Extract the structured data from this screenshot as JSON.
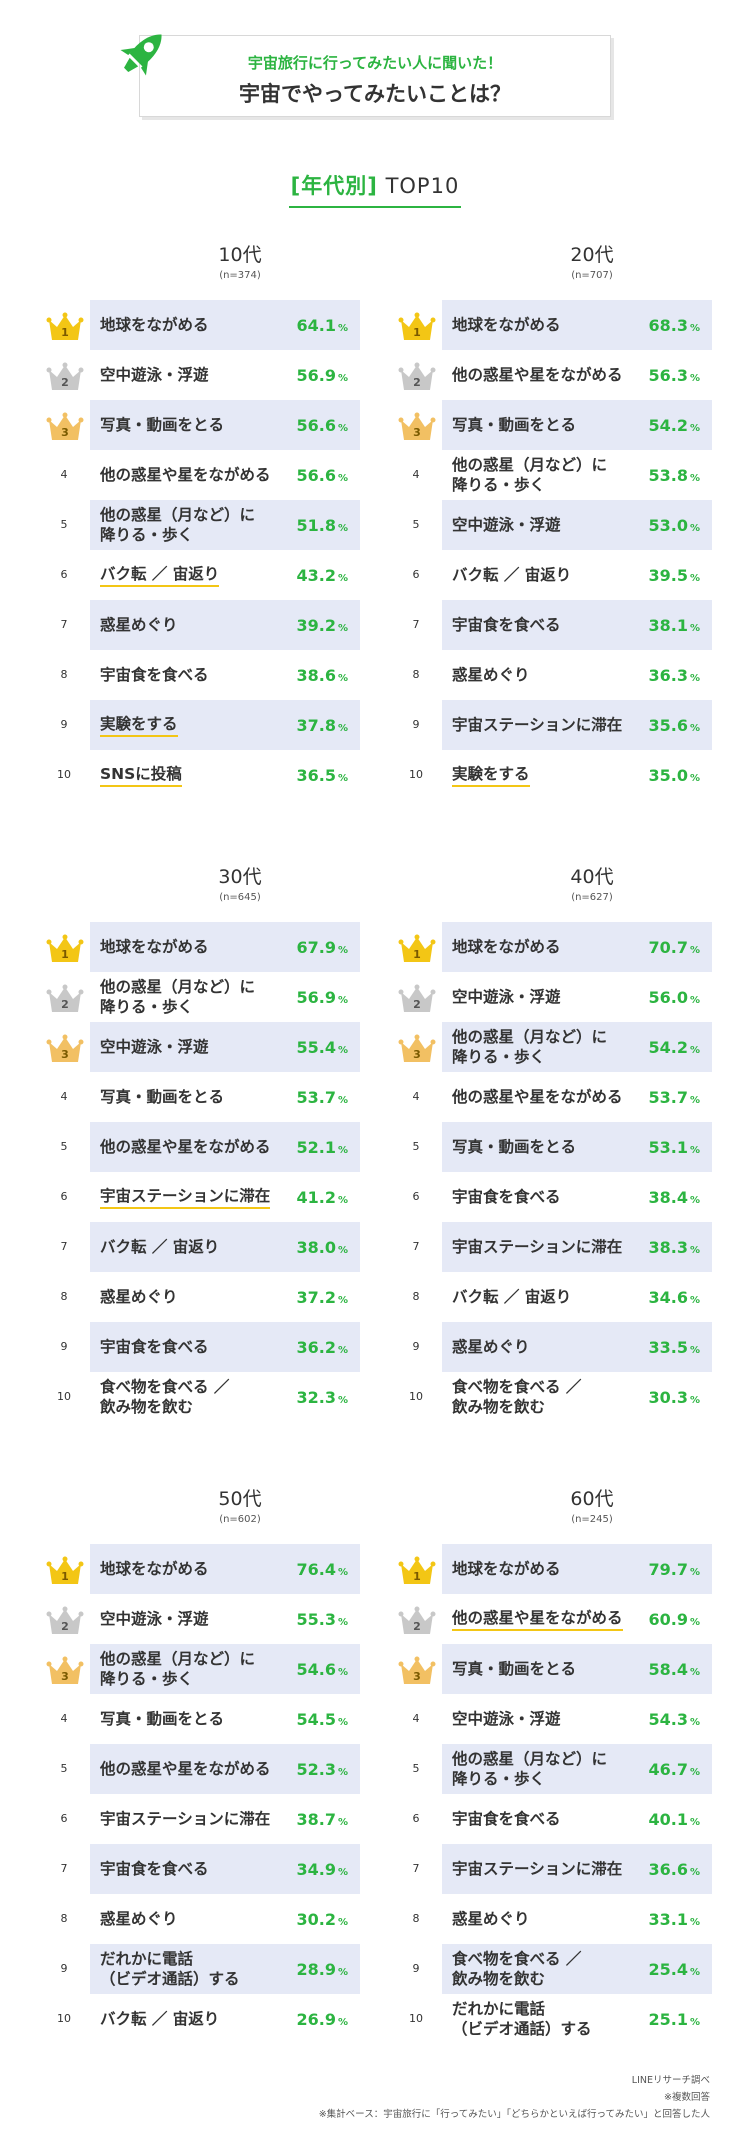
{
  "header": {
    "subtitle": "宇宙旅行に行ってみたい人に聞いた！",
    "title": "宇宙でやってみたいことは？"
  },
  "section": {
    "open": "[",
    "label": "年代別",
    "close": "]",
    "suffix": " TOP10"
  },
  "colors": {
    "accent": "#2cb441",
    "bar": "#e5e9f6",
    "gold": "#f3c615",
    "silver": "#c8c8c8",
    "bronze": "#f2c063",
    "underline": "#f3c615"
  },
  "icons": {
    "header": "rocket-icon",
    "rank1": "gold-crown-icon",
    "rank2": "silver-crown-icon",
    "rank3": "bronze-crown-icon"
  },
  "percent_sign": "%",
  "chart_data": [
    {
      "type": "table",
      "title": "10代",
      "sample": "(n=374)",
      "rows": [
        {
          "rank": "1",
          "item": "地球をながめる",
          "value": "64.1",
          "ul": false
        },
        {
          "rank": "2",
          "item": "空中遊泳・浮遊",
          "value": "56.9",
          "ul": false
        },
        {
          "rank": "3",
          "item": "写真・動画をとる",
          "value": "56.6",
          "ul": false
        },
        {
          "rank": "4",
          "item": "他の惑星や星をながめる",
          "value": "56.6",
          "ul": false
        },
        {
          "rank": "5",
          "item": "他の惑星（月など）に\n降りる・歩く",
          "value": "51.8",
          "ul": false
        },
        {
          "rank": "6",
          "item": "バク転 ／ 宙返り",
          "value": "43.2",
          "ul": true
        },
        {
          "rank": "7",
          "item": "惑星めぐり",
          "value": "39.2",
          "ul": false
        },
        {
          "rank": "8",
          "item": "宇宙食を食べる",
          "value": "38.6",
          "ul": false
        },
        {
          "rank": "9",
          "item": "実験をする",
          "value": "37.8",
          "ul": true
        },
        {
          "rank": "10",
          "item": "SNSに投稿",
          "value": "36.5",
          "ul": true
        }
      ]
    },
    {
      "type": "table",
      "title": "20代",
      "sample": "(n=707)",
      "rows": [
        {
          "rank": "1",
          "item": "地球をながめる",
          "value": "68.3",
          "ul": false
        },
        {
          "rank": "2",
          "item": "他の惑星や星をながめる",
          "value": "56.3",
          "ul": false
        },
        {
          "rank": "3",
          "item": "写真・動画をとる",
          "value": "54.2",
          "ul": false
        },
        {
          "rank": "4",
          "item": "他の惑星（月など）に\n降りる・歩く",
          "value": "53.8",
          "ul": false
        },
        {
          "rank": "5",
          "item": "空中遊泳・浮遊",
          "value": "53.0",
          "ul": false
        },
        {
          "rank": "6",
          "item": "バク転 ／ 宙返り",
          "value": "39.5",
          "ul": false
        },
        {
          "rank": "7",
          "item": "宇宙食を食べる",
          "value": "38.1",
          "ul": false
        },
        {
          "rank": "8",
          "item": "惑星めぐり",
          "value": "36.3",
          "ul": false
        },
        {
          "rank": "9",
          "item": "宇宙ステーションに滞在",
          "value": "35.6",
          "ul": false
        },
        {
          "rank": "10",
          "item": "実験をする",
          "value": "35.0",
          "ul": true
        }
      ]
    },
    {
      "type": "table",
      "title": "30代",
      "sample": "(n=645)",
      "rows": [
        {
          "rank": "1",
          "item": "地球をながめる",
          "value": "67.9",
          "ul": false
        },
        {
          "rank": "2",
          "item": "他の惑星（月など）に\n降りる・歩く",
          "value": "56.9",
          "ul": false
        },
        {
          "rank": "3",
          "item": "空中遊泳・浮遊",
          "value": "55.4",
          "ul": false
        },
        {
          "rank": "4",
          "item": "写真・動画をとる",
          "value": "53.7",
          "ul": false
        },
        {
          "rank": "5",
          "item": "他の惑星や星をながめる",
          "value": "52.1",
          "ul": false
        },
        {
          "rank": "6",
          "item": "宇宙ステーションに滞在",
          "value": "41.2",
          "ul": true
        },
        {
          "rank": "7",
          "item": "バク転 ／ 宙返り",
          "value": "38.0",
          "ul": false
        },
        {
          "rank": "8",
          "item": "惑星めぐり",
          "value": "37.2",
          "ul": false
        },
        {
          "rank": "9",
          "item": "宇宙食を食べる",
          "value": "36.2",
          "ul": false
        },
        {
          "rank": "10",
          "item": "食べ物を食べる ／\n飲み物を飲む",
          "value": "32.3",
          "ul": false
        }
      ]
    },
    {
      "type": "table",
      "title": "40代",
      "sample": "(n=627)",
      "rows": [
        {
          "rank": "1",
          "item": "地球をながめる",
          "value": "70.7",
          "ul": false
        },
        {
          "rank": "2",
          "item": "空中遊泳・浮遊",
          "value": "56.0",
          "ul": false
        },
        {
          "rank": "3",
          "item": "他の惑星（月など）に\n降りる・歩く",
          "value": "54.2",
          "ul": false
        },
        {
          "rank": "4",
          "item": "他の惑星や星をながめる",
          "value": "53.7",
          "ul": false
        },
        {
          "rank": "5",
          "item": "写真・動画をとる",
          "value": "53.1",
          "ul": false
        },
        {
          "rank": "6",
          "item": "宇宙食を食べる",
          "value": "38.4",
          "ul": false
        },
        {
          "rank": "7",
          "item": "宇宙ステーションに滞在",
          "value": "38.3",
          "ul": false
        },
        {
          "rank": "8",
          "item": "バク転 ／ 宙返り",
          "value": "34.6",
          "ul": false
        },
        {
          "rank": "9",
          "item": "惑星めぐり",
          "value": "33.5",
          "ul": false
        },
        {
          "rank": "10",
          "item": "食べ物を食べる ／\n飲み物を飲む",
          "value": "30.3",
          "ul": false
        }
      ]
    },
    {
      "type": "table",
      "title": "50代",
      "sample": "(n=602)",
      "rows": [
        {
          "rank": "1",
          "item": "地球をながめる",
          "value": "76.4",
          "ul": false
        },
        {
          "rank": "2",
          "item": "空中遊泳・浮遊",
          "value": "55.3",
          "ul": false
        },
        {
          "rank": "3",
          "item": "他の惑星（月など）に\n降りる・歩く",
          "value": "54.6",
          "ul": false
        },
        {
          "rank": "4",
          "item": "写真・動画をとる",
          "value": "54.5",
          "ul": false
        },
        {
          "rank": "5",
          "item": "他の惑星や星をながめる",
          "value": "52.3",
          "ul": false
        },
        {
          "rank": "6",
          "item": "宇宙ステーションに滞在",
          "value": "38.7",
          "ul": false
        },
        {
          "rank": "7",
          "item": "宇宙食を食べる",
          "value": "34.9",
          "ul": false
        },
        {
          "rank": "8",
          "item": "惑星めぐり",
          "value": "30.2",
          "ul": false
        },
        {
          "rank": "9",
          "item": "だれかに電話\n（ビデオ通話）する",
          "value": "28.9",
          "ul": false
        },
        {
          "rank": "10",
          "item": "バク転 ／ 宙返り",
          "value": "26.9",
          "ul": false
        }
      ]
    },
    {
      "type": "table",
      "title": "60代",
      "sample": "(n=245)",
      "rows": [
        {
          "rank": "1",
          "item": "地球をながめる",
          "value": "79.7",
          "ul": false
        },
        {
          "rank": "2",
          "item": "他の惑星や星をながめる",
          "value": "60.9",
          "ul": true
        },
        {
          "rank": "3",
          "item": "写真・動画をとる",
          "value": "58.4",
          "ul": false
        },
        {
          "rank": "4",
          "item": "空中遊泳・浮遊",
          "value": "54.3",
          "ul": false
        },
        {
          "rank": "5",
          "item": "他の惑星（月など）に\n降りる・歩く",
          "value": "46.7",
          "ul": false
        },
        {
          "rank": "6",
          "item": "宇宙食を食べる",
          "value": "40.1",
          "ul": false
        },
        {
          "rank": "7",
          "item": "宇宙ステーションに滞在",
          "value": "36.6",
          "ul": false
        },
        {
          "rank": "8",
          "item": "惑星めぐり",
          "value": "33.1",
          "ul": false
        },
        {
          "rank": "9",
          "item": "食べ物を食べる ／\n飲み物を飲む",
          "value": "25.4",
          "ul": false
        },
        {
          "rank": "10",
          "item": "だれかに電話\n（ビデオ通話）する",
          "value": "25.1",
          "ul": false
        }
      ]
    }
  ],
  "footer": {
    "source": "LINEリサーチ調べ",
    "note1": "※複数回答",
    "note2": "※集計ベース：宇宙旅行に「行ってみたい」「どちらかといえば行ってみたい」と回答した人"
  }
}
